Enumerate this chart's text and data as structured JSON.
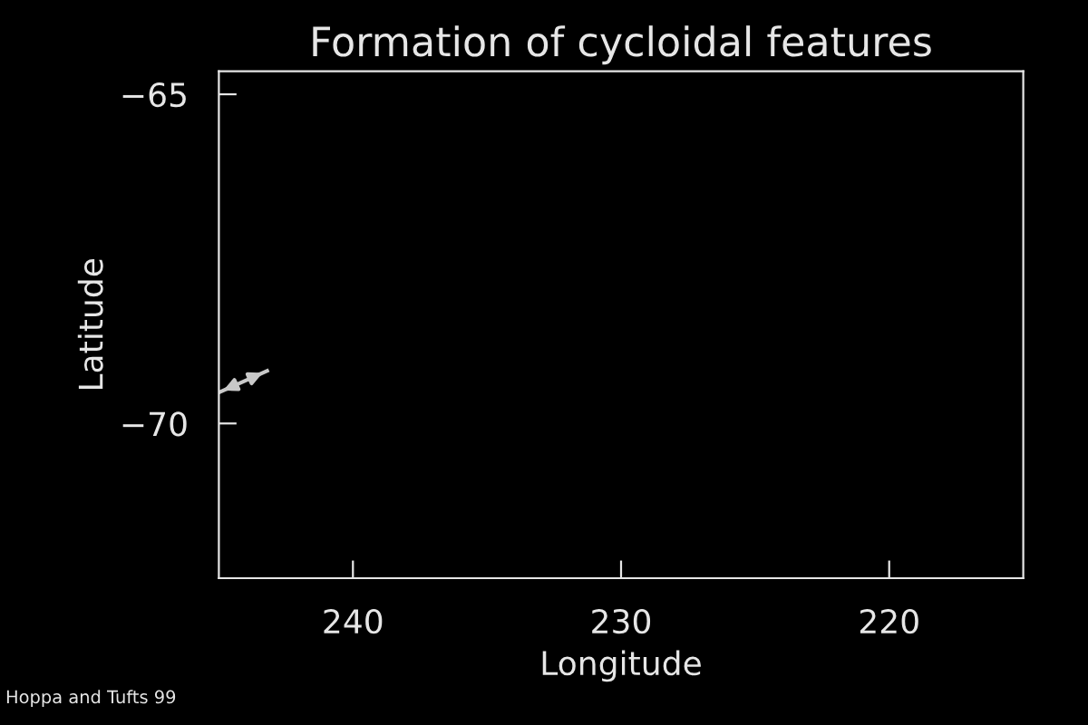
{
  "chart_data": {
    "type": "line",
    "title": "Formation of cycloidal features",
    "xlabel": "Longitude",
    "ylabel": "Latitude",
    "xlim": [
      245,
      215
    ],
    "xticks": [
      240,
      230,
      220
    ],
    "ylim": [
      -72.35,
      -64.65
    ],
    "yticks": [
      {
        "value": -65,
        "label": "−65"
      },
      {
        "value": -70,
        "label": "−70"
      }
    ],
    "series": [
      {
        "x": [
          245.0,
          243.2
        ],
        "values": [
          -69.53,
          -69.2
        ],
        "color": "#c8c8c8"
      }
    ],
    "annotations": [
      "Hoppa and Tufts 99"
    ],
    "grid": false,
    "legend": false
  }
}
